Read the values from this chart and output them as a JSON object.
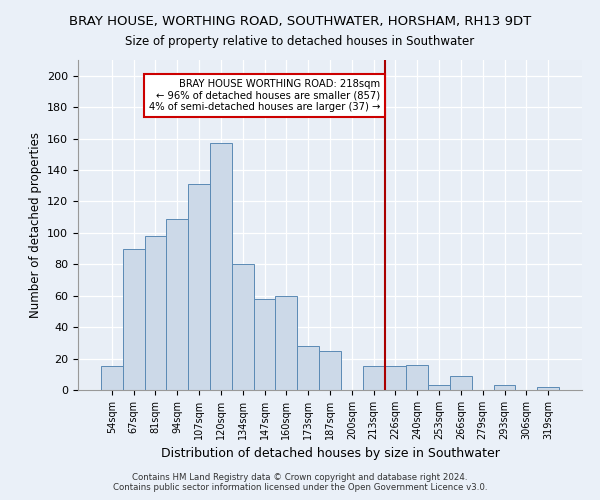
{
  "title": "BRAY HOUSE, WORTHING ROAD, SOUTHWATER, HORSHAM, RH13 9DT",
  "subtitle": "Size of property relative to detached houses in Southwater",
  "xlabel": "Distribution of detached houses by size in Southwater",
  "ylabel": "Number of detached properties",
  "bar_labels": [
    "54sqm",
    "67sqm",
    "81sqm",
    "94sqm",
    "107sqm",
    "120sqm",
    "134sqm",
    "147sqm",
    "160sqm",
    "173sqm",
    "187sqm",
    "200sqm",
    "213sqm",
    "226sqm",
    "240sqm",
    "253sqm",
    "266sqm",
    "279sqm",
    "293sqm",
    "306sqm",
    "319sqm"
  ],
  "bar_heights": [
    15,
    90,
    98,
    109,
    131,
    157,
    80,
    58,
    60,
    28,
    25,
    0,
    15,
    15,
    16,
    3,
    9,
    0,
    3,
    0,
    2
  ],
  "bar_color": "#ccd9e8",
  "bar_edge_color": "#5b8ab5",
  "vline_x_index": 13,
  "vline_color": "#aa0000",
  "annotation_text": "BRAY HOUSE WORTHING ROAD: 218sqm\n← 96% of detached houses are smaller (857)\n4% of semi-detached houses are larger (37) →",
  "annotation_box_color": "#ffffff",
  "annotation_box_edge": "#cc0000",
  "ylim": [
    0,
    210
  ],
  "yticks": [
    0,
    20,
    40,
    60,
    80,
    100,
    120,
    140,
    160,
    180,
    200
  ],
  "footer": "Contains HM Land Registry data © Crown copyright and database right 2024.\nContains public sector information licensed under the Open Government Licence v3.0.",
  "bg_color": "#eaf0f8",
  "grid_color": "#ffffff",
  "plot_bg": "#e8eef6"
}
